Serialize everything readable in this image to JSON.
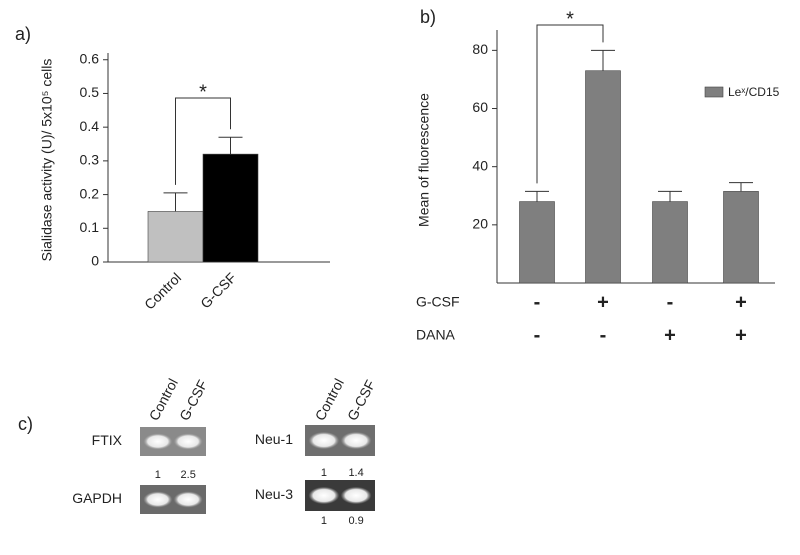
{
  "chart_data": [
    {
      "type": "bar",
      "panel_label": "a)",
      "y_label": "Sialidase activity (U)/ 5x10⁵ cells",
      "categories": [
        "Control",
        "G-CSF"
      ],
      "values": [
        0.15,
        0.32
      ],
      "errors": [
        0.055,
        0.05
      ],
      "colors": [
        "#c0c0c0",
        "#000000"
      ],
      "ylim": [
        0,
        0.62
      ],
      "yticks": [
        0,
        0.1,
        0.2,
        0.3,
        0.4,
        0.5,
        0.6
      ],
      "significance_label": "*"
    },
    {
      "type": "bar",
      "panel_label": "b)",
      "y_label": "Mean of fluorescence",
      "categories": [
        null,
        null,
        null,
        null
      ],
      "series": [
        {
          "name": "Leˣ/CD15",
          "color": "#7f7f7f",
          "values": [
            28,
            73,
            28,
            31.5
          ],
          "errors": [
            3.5,
            7,
            3.5,
            3
          ]
        }
      ],
      "ylim": [
        0,
        87
      ],
      "yticks": [
        20,
        40,
        60,
        80
      ],
      "legend": "upper right",
      "significance_label": "*",
      "conditions": [
        {
          "name": "G-CSF",
          "values": [
            "-",
            "+",
            "-",
            "+"
          ]
        },
        {
          "name": "DANA",
          "values": [
            "-",
            "-",
            "+",
            "+"
          ]
        }
      ]
    }
  ],
  "gels": {
    "panel_label": "c)",
    "groups": [
      {
        "lanes": [
          "Control",
          "G-CSF"
        ],
        "rows": [
          {
            "label": "FTIX",
            "quant": [
              1,
              2.5
            ]
          },
          {
            "label": "GAPDH"
          }
        ]
      },
      {
        "lanes": [
          "Control",
          "G-CSF"
        ],
        "rows": [
          {
            "label": "Neu-1",
            "quant": [
              1,
              1.4
            ]
          },
          {
            "label": "Neu-3",
            "quant": [
              1,
              0.9
            ]
          }
        ]
      }
    ]
  }
}
